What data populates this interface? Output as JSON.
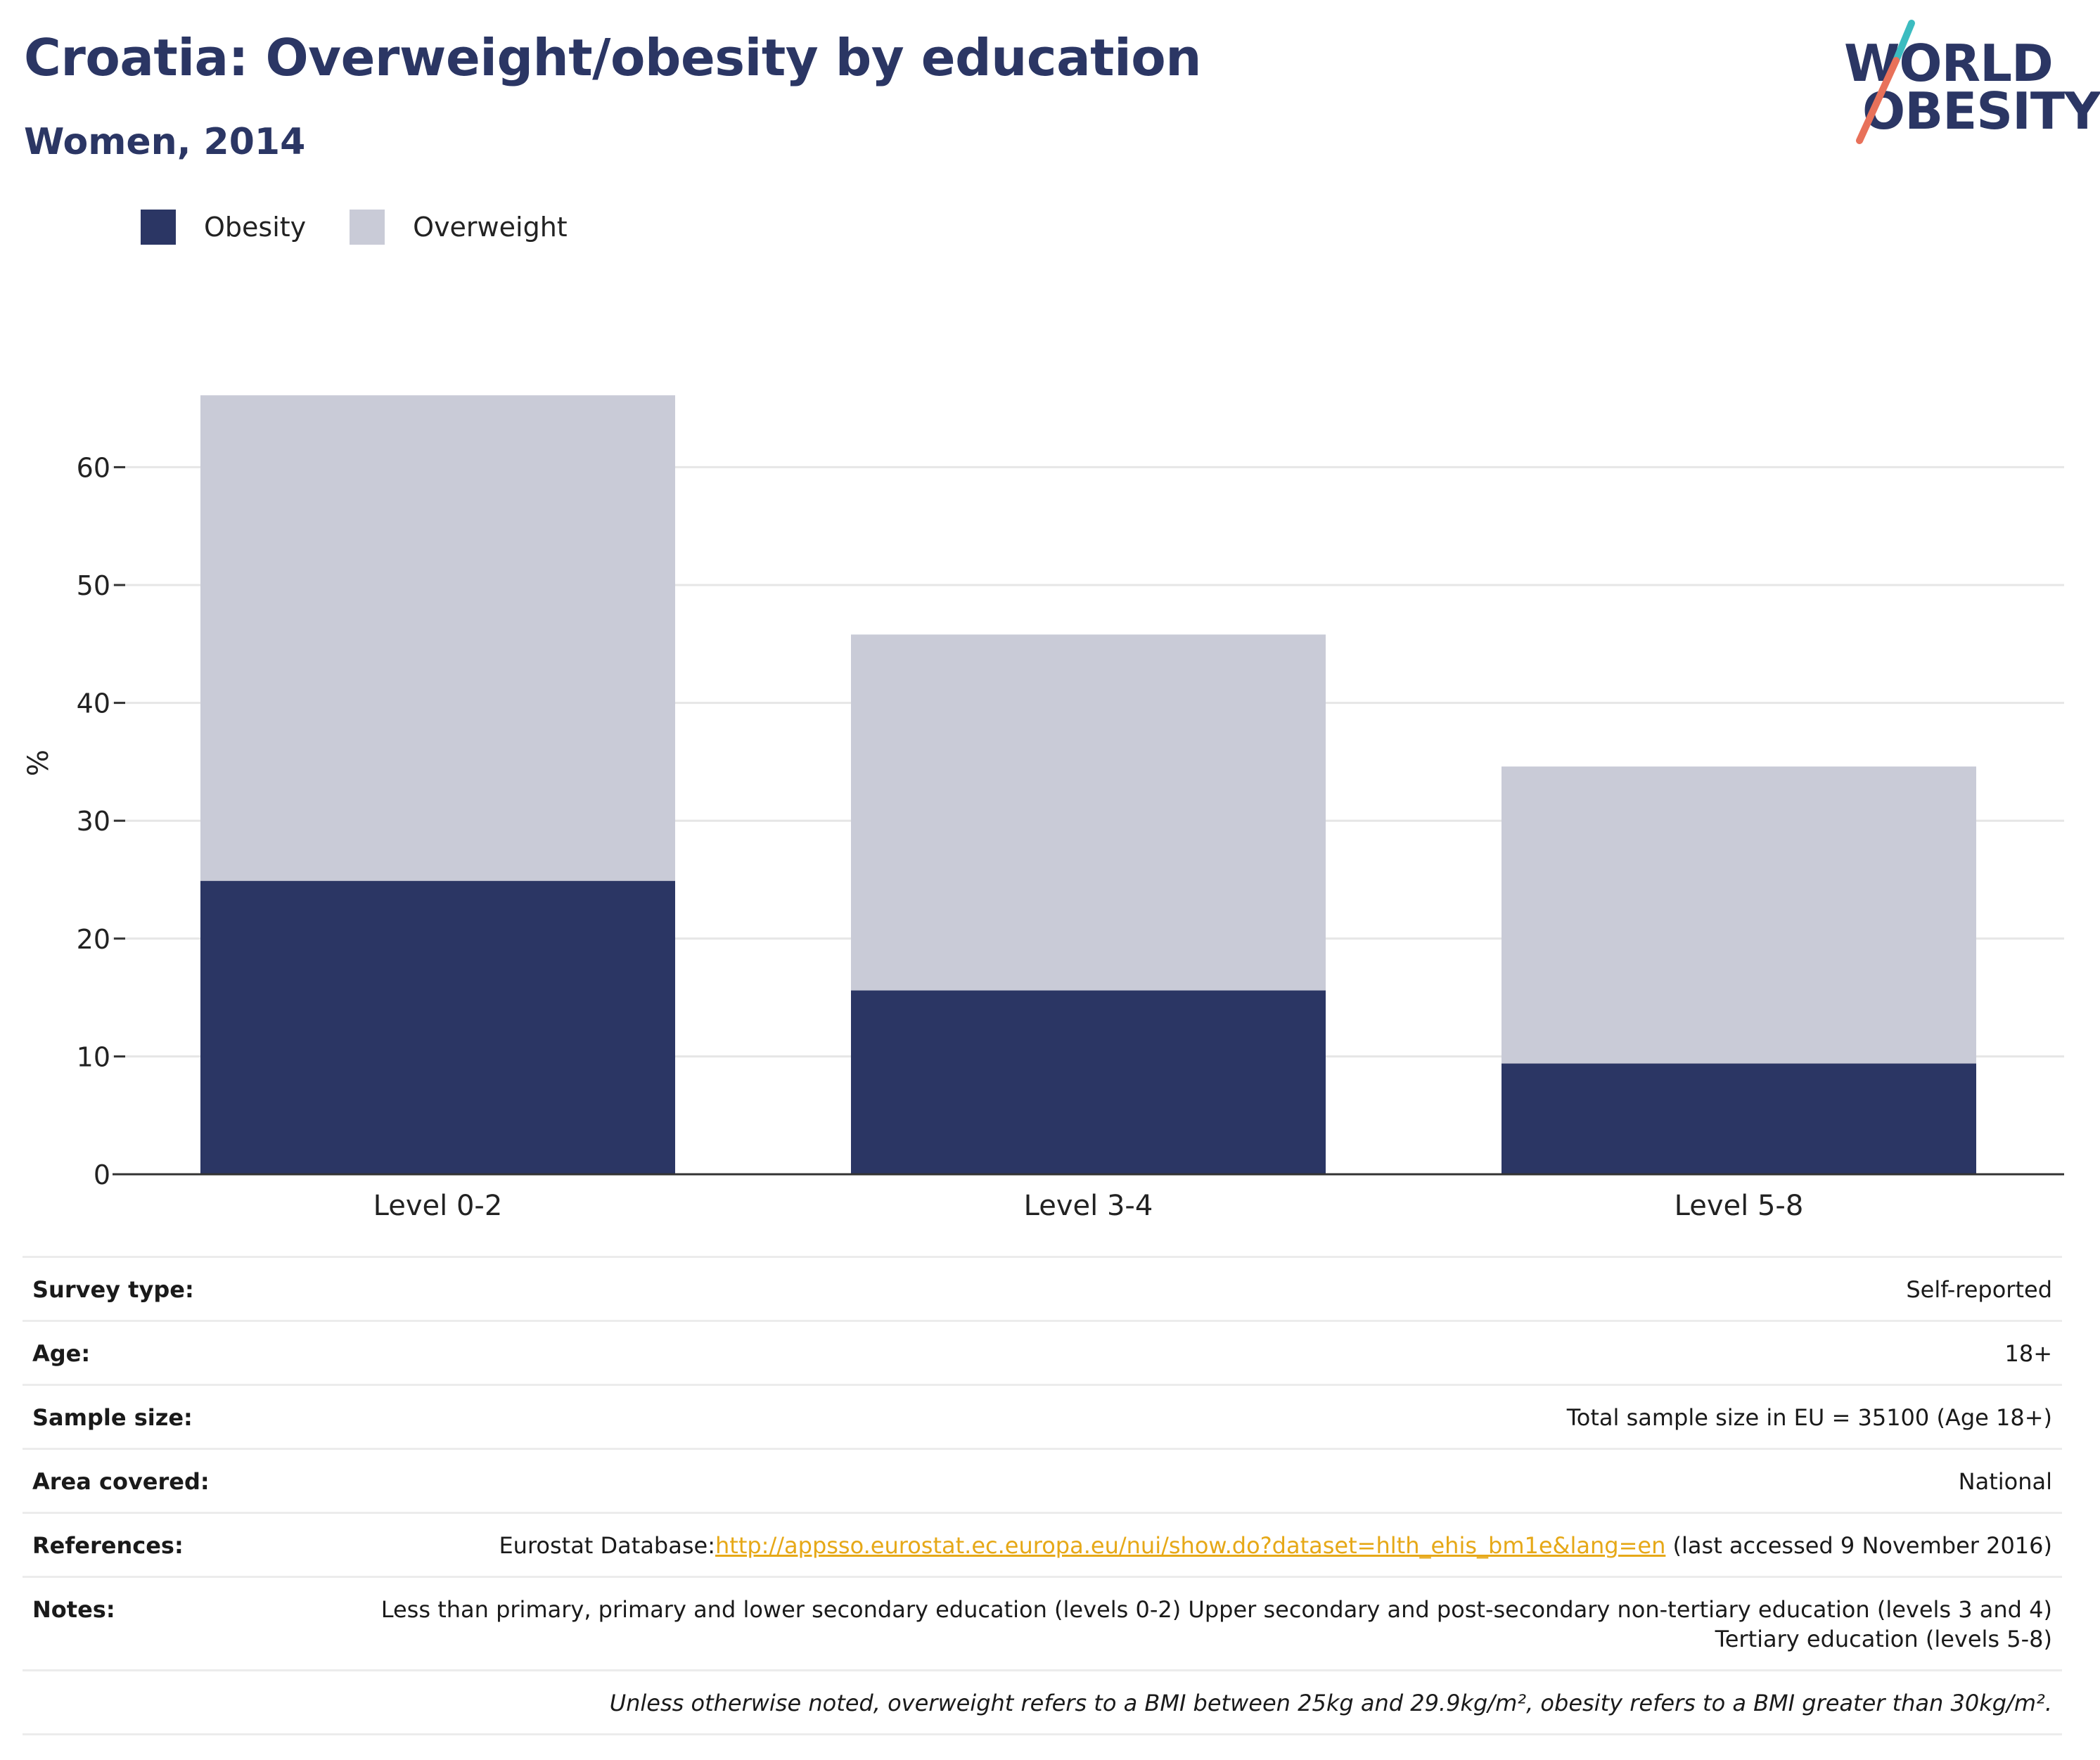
{
  "header": {
    "title": "Croatia: Overweight/obesity by education",
    "subtitle": "Women, 2014"
  },
  "logo": {
    "line1": "WORLD",
    "line2": "OBESITY",
    "colors": {
      "text": "#2b3664",
      "slash_top": "#3cbcc0",
      "slash_bottom": "#e8715a"
    }
  },
  "colors": {
    "obesity": "#2b3664",
    "overweight": "#c9cbd7",
    "link": "#e6a817"
  },
  "chart_data": {
    "type": "bar",
    "stacked": true,
    "categories": [
      "Level 0-2",
      "Level 3-4",
      "Level 5-8"
    ],
    "series": [
      {
        "name": "Obesity",
        "values": [
          24.9,
          15.6,
          9.4
        ],
        "color": "#2b3664"
      },
      {
        "name": "Overweight",
        "values": [
          41.2,
          30.2,
          25.2
        ],
        "color": "#c9cbd7"
      }
    ],
    "ylabel": "%",
    "xlabel": "",
    "ylim": [
      0,
      68
    ],
    "yticks": [
      0,
      10,
      20,
      30,
      40,
      50,
      60
    ],
    "grid": true,
    "legend_position": "top-left"
  },
  "info": {
    "survey_type": {
      "label": "Survey type:",
      "value": "Self-reported"
    },
    "age": {
      "label": "Age:",
      "value": "18+"
    },
    "sample_size": {
      "label": "Sample size:",
      "value": "Total sample size in EU = 35100 (Age 18+)"
    },
    "area": {
      "label": "Area covered:",
      "value": "National"
    },
    "references": {
      "label": "References:",
      "prefix": "Eurostat Database:",
      "link": "http://appsso.eurostat.ec.europa.eu/nui/show.do?dataset=hlth_ehis_bm1e&lang=en",
      "suffix": " (last accessed 9 November 2016)"
    },
    "notes": {
      "label": "Notes:",
      "value": "Less than primary, primary and lower secondary education (levels 0-2) Upper secondary and post-secondary non-tertiary education (levels 3 and 4) Tertiary education (levels 5-8)"
    },
    "footnote": "Unless otherwise noted, overweight refers to a BMI between 25kg and 29.9kg/m², obesity refers to a BMI greater than 30kg/m²."
  }
}
